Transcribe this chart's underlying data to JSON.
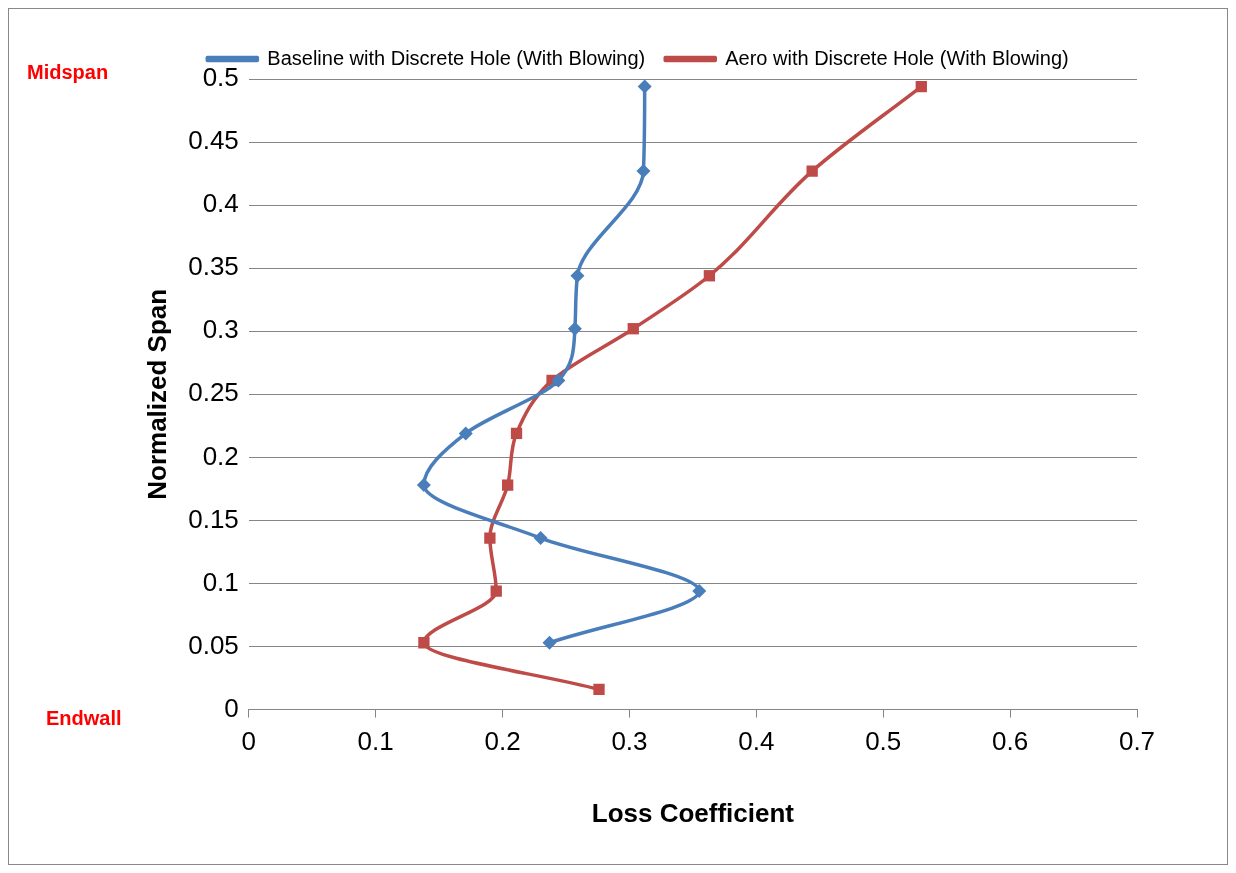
{
  "chart_data": {
    "type": "line",
    "xlabel": "Loss Coefficient",
    "ylabel": "Normalized Span",
    "xlim": [
      0,
      0.7
    ],
    "xticks": [
      0,
      0.1,
      0.2,
      0.3,
      0.4,
      0.5,
      0.6,
      0.7
    ],
    "ylim": [
      0,
      0.5
    ],
    "yticks": [
      0,
      0.05,
      0.1,
      0.15,
      0.2,
      0.25,
      0.3,
      0.35,
      0.4,
      0.45,
      0.5
    ],
    "grid": "y",
    "legend": "top",
    "line_style": "solid",
    "annotations": [
      "Midspan",
      "Endwall"
    ],
    "series": [
      {
        "name": "Baseline with Discrete Hole (With Blowing)",
        "color": "#4a7ebb",
        "marker": "diamond",
        "x": [
          0.312,
          0.311,
          0.259,
          0.257,
          0.244,
          0.171,
          0.138,
          0.23,
          0.355,
          0.237
        ],
        "values": [
          0.494,
          0.427,
          0.344,
          0.302,
          0.261,
          0.219,
          0.178,
          0.136,
          0.094,
          0.053
        ]
      },
      {
        "name": "Aero with Discrete Hole (With Blowing)",
        "color": "#be4b48",
        "marker": "square",
        "x": [
          0.53,
          0.444,
          0.363,
          0.303,
          0.239,
          0.211,
          0.204,
          0.19,
          0.195,
          0.138,
          0.276
        ],
        "values": [
          0.494,
          0.427,
          0.344,
          0.302,
          0.261,
          0.219,
          0.178,
          0.136,
          0.094,
          0.053,
          0.016
        ]
      }
    ]
  }
}
